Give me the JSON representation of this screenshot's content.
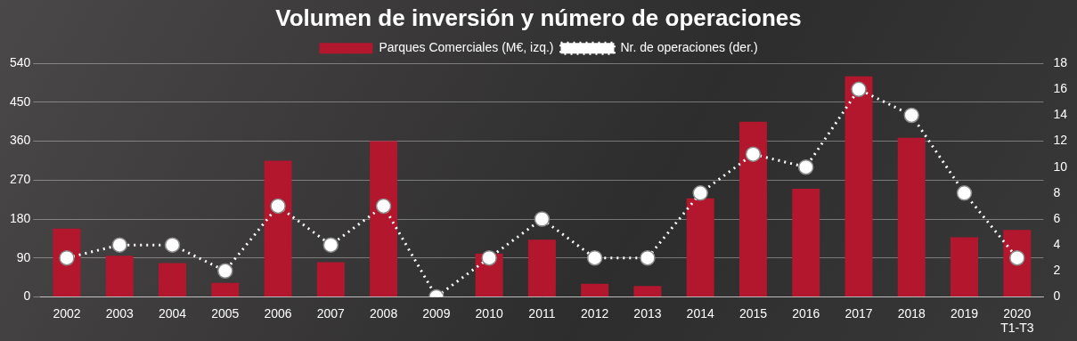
{
  "chart_data": {
    "type": "bar",
    "title": "Volumen de inversión y número de operaciones",
    "categories": [
      "2002",
      "2003",
      "2004",
      "2005",
      "2006",
      "2007",
      "2008",
      "2009",
      "2010",
      "2011",
      "2012",
      "2013",
      "2014",
      "2015",
      "2016",
      "2017",
      "2018",
      "2019",
      "2020\nT1-T3"
    ],
    "series": [
      {
        "name": "Parques Comerciales (M€, izq.)",
        "type": "bar",
        "color": "#b3172e",
        "values": [
          158,
          95,
          78,
          32,
          315,
          80,
          360,
          0,
          100,
          132,
          30,
          25,
          228,
          405,
          250,
          510,
          368,
          138,
          155
        ]
      },
      {
        "name": "Nr. de operaciones (der.)",
        "type": "line",
        "axis": "y2",
        "color": "#ffffff",
        "marker": "circle",
        "line_style": "dotted",
        "values": [
          3,
          4,
          4,
          2,
          7,
          4,
          7,
          0,
          3,
          6,
          3,
          3,
          8,
          11,
          10,
          16,
          14,
          8,
          3
        ]
      }
    ],
    "ylim": [
      0,
      540
    ],
    "yticks": [
      0,
      90,
      180,
      270,
      360,
      450,
      540
    ],
    "y2lim": [
      0,
      18
    ],
    "y2ticks": [
      0,
      2,
      4,
      6,
      8,
      10,
      12,
      14,
      16,
      18
    ],
    "grid": true,
    "legend": "top"
  }
}
